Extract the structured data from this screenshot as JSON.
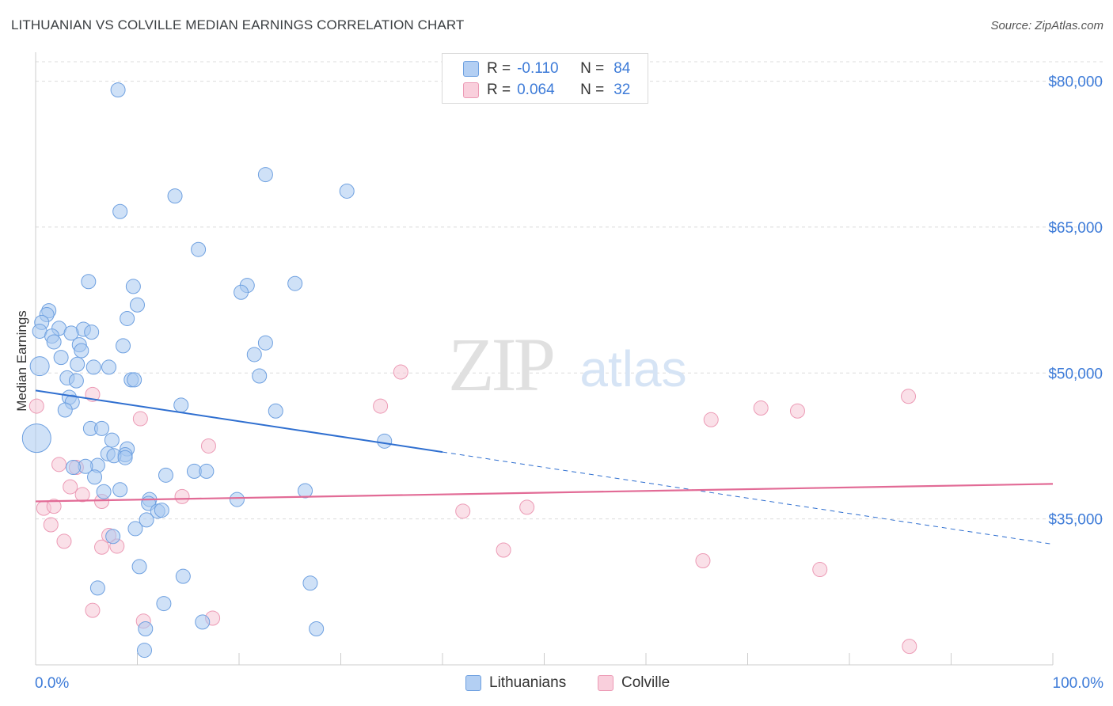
{
  "header": {
    "title": "LITHUANIAN VS COLVILLE MEDIAN EARNINGS CORRELATION CHART",
    "source": "Source: ZipAtlas.com"
  },
  "watermark": {
    "zip": "ZIP",
    "atlas": "atlas"
  },
  "legend": {
    "rows": [
      {
        "r_label": "R =",
        "r_value": "-0.110",
        "n_label": "N =",
        "n_value": "84"
      },
      {
        "r_label": "R =",
        "r_value": "0.064",
        "n_label": "N =",
        "n_value": "32"
      }
    ]
  },
  "bottom_legend": {
    "items": [
      "Lithuanians",
      "Colville"
    ]
  },
  "colors": {
    "blue_fill": "#a8c8f0",
    "blue_stroke": "#6ea0e0",
    "blue_line": "#2f6fd0",
    "pink_fill": "#f6c6d5",
    "pink_stroke": "#ec9ab5",
    "pink_line": "#e26b96",
    "axis_text": "#3d7bd8",
    "grid": "#dcdcdc"
  },
  "chart_data": {
    "type": "scatter",
    "title": "LITHUANIAN VS COLVILLE MEDIAN EARNINGS CORRELATION CHART",
    "ylabel": "Median Earnings",
    "xlabel": "",
    "xlim": [
      0,
      100
    ],
    "ylim": [
      20000,
      82000
    ],
    "x_tick_labels": [
      "0.0%",
      "100.0%"
    ],
    "y_ticks": [
      {
        "value": 35000,
        "label": "$35,000"
      },
      {
        "value": 50000,
        "label": "$50,000"
      },
      {
        "value": 65000,
        "label": "$65,000"
      },
      {
        "value": 80000,
        "label": "$80,000"
      }
    ],
    "series": [
      {
        "name": "Lithuanians",
        "r": -0.11,
        "n": 84,
        "trend": {
          "x0": 0,
          "y0": 48200,
          "x1": 100,
          "y1": 32400,
          "solid_until_x": 40
        },
        "points": [
          [
            8.1,
            79100,
            0
          ],
          [
            22.6,
            70400,
            0
          ],
          [
            30.6,
            68700,
            0
          ],
          [
            13.7,
            68200,
            0
          ],
          [
            8.3,
            66600,
            0
          ],
          [
            16.0,
            62700,
            0
          ],
          [
            5.2,
            59400,
            0
          ],
          [
            25.5,
            59200,
            0
          ],
          [
            20.8,
            59000,
            0
          ],
          [
            9.6,
            58900,
            0
          ],
          [
            20.2,
            58300,
            0
          ],
          [
            10.0,
            57000,
            0
          ],
          [
            1.3,
            56400,
            0
          ],
          [
            1.1,
            56000,
            0
          ],
          [
            9.0,
            55600,
            0
          ],
          [
            0.6,
            55200,
            0
          ],
          [
            2.3,
            54600,
            0
          ],
          [
            4.7,
            54500,
            0
          ],
          [
            5.5,
            54200,
            0
          ],
          [
            3.5,
            54100,
            0
          ],
          [
            0.4,
            54300,
            0
          ],
          [
            1.6,
            53800,
            0
          ],
          [
            1.8,
            53200,
            0
          ],
          [
            22.6,
            53100,
            0
          ],
          [
            4.3,
            52900,
            0
          ],
          [
            8.6,
            52800,
            0
          ],
          [
            4.5,
            52300,
            0
          ],
          [
            21.5,
            51900,
            0
          ],
          [
            2.5,
            51600,
            0
          ],
          [
            0.4,
            50700,
            1
          ],
          [
            5.7,
            50600,
            0
          ],
          [
            7.2,
            50600,
            0
          ],
          [
            4.1,
            50900,
            0
          ],
          [
            22.0,
            49700,
            0
          ],
          [
            3.1,
            49500,
            0
          ],
          [
            4.0,
            49200,
            0
          ],
          [
            9.4,
            49300,
            0
          ],
          [
            9.7,
            49300,
            0
          ],
          [
            3.3,
            47500,
            0
          ],
          [
            3.6,
            47000,
            0
          ],
          [
            14.3,
            46700,
            0
          ],
          [
            2.9,
            46200,
            0
          ],
          [
            23.6,
            46100,
            0
          ],
          [
            0.1,
            43300,
            2
          ],
          [
            5.4,
            44300,
            0
          ],
          [
            6.5,
            44300,
            0
          ],
          [
            7.5,
            43100,
            0
          ],
          [
            34.3,
            43000,
            0
          ],
          [
            9.0,
            42200,
            0
          ],
          [
            8.8,
            41600,
            0
          ],
          [
            7.1,
            41700,
            0
          ],
          [
            7.7,
            41500,
            0
          ],
          [
            8.8,
            41300,
            0
          ],
          [
            6.1,
            40500,
            0
          ],
          [
            4.9,
            40400,
            0
          ],
          [
            3.7,
            40300,
            0
          ],
          [
            15.6,
            39900,
            0
          ],
          [
            16.8,
            39900,
            0
          ],
          [
            12.8,
            39500,
            0
          ],
          [
            5.8,
            39300,
            0
          ],
          [
            8.3,
            38000,
            0
          ],
          [
            6.7,
            37800,
            0
          ],
          [
            26.5,
            37900,
            0
          ],
          [
            11.2,
            37000,
            0
          ],
          [
            19.8,
            37000,
            0
          ],
          [
            11.1,
            36600,
            0
          ],
          [
            12.0,
            35800,
            0
          ],
          [
            12.4,
            35900,
            0
          ],
          [
            10.9,
            34900,
            0
          ],
          [
            9.8,
            34000,
            0
          ],
          [
            7.6,
            33200,
            0
          ],
          [
            10.2,
            30100,
            0
          ],
          [
            14.5,
            29100,
            0
          ],
          [
            27.0,
            28400,
            0
          ],
          [
            6.1,
            27900,
            0
          ],
          [
            12.6,
            26300,
            0
          ],
          [
            16.4,
            24400,
            0
          ],
          [
            10.8,
            23700,
            0
          ],
          [
            27.6,
            23700,
            0
          ],
          [
            10.7,
            21500,
            0
          ]
        ]
      },
      {
        "name": "Colville",
        "r": 0.064,
        "n": 32,
        "trend": {
          "x0": 0,
          "y0": 36800,
          "x1": 100,
          "y1": 38600
        },
        "points": [
          [
            0.1,
            46600
          ],
          [
            35.9,
            50100
          ],
          [
            33.9,
            46600
          ],
          [
            85.8,
            47600
          ],
          [
            71.3,
            46400
          ],
          [
            74.9,
            46100
          ],
          [
            66.4,
            45200
          ],
          [
            10.3,
            45300
          ],
          [
            5.6,
            47800
          ],
          [
            17.0,
            42500
          ],
          [
            2.3,
            40600
          ],
          [
            4.0,
            40300
          ],
          [
            3.4,
            38300
          ],
          [
            4.6,
            37500
          ],
          [
            14.4,
            37300
          ],
          [
            6.5,
            36800
          ],
          [
            0.8,
            36100
          ],
          [
            1.8,
            36300
          ],
          [
            48.3,
            36200
          ],
          [
            42.0,
            35800
          ],
          [
            1.5,
            34400
          ],
          [
            7.2,
            33300
          ],
          [
            2.8,
            32700
          ],
          [
            6.5,
            32100
          ],
          [
            8.0,
            32200
          ],
          [
            46.0,
            31800
          ],
          [
            65.6,
            30700
          ],
          [
            77.1,
            29800
          ],
          [
            5.6,
            25600
          ],
          [
            10.6,
            24500
          ],
          [
            17.4,
            24800
          ],
          [
            85.9,
            21900
          ]
        ]
      }
    ]
  }
}
